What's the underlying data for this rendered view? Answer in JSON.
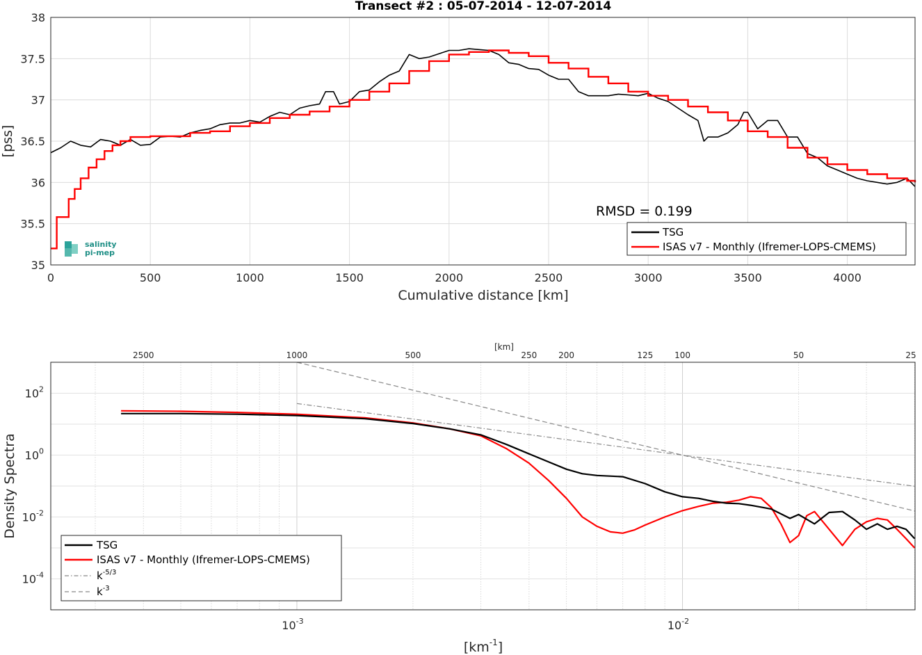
{
  "chart_data": [
    {
      "type": "line",
      "title": "Transect #2 : 05-07-2014 - 12-07-2014",
      "xlabel": "Cumulative distance [km]",
      "ylabel": "[pss]",
      "xlim": [
        0,
        4340
      ],
      "ylim": [
        35,
        38
      ],
      "xticks": [
        "0",
        "500",
        "1000",
        "1500",
        "2000",
        "2500",
        "3000",
        "3500",
        "4000"
      ],
      "yticks": [
        "35",
        "35.5",
        "36",
        "36.5",
        "37",
        "37.5",
        "38"
      ],
      "grid": true,
      "legend_position": "bottom-right",
      "annotation": "RMSD = 0.199",
      "logo": {
        "line1": "salinity",
        "line2": "pi-mep"
      },
      "series": [
        {
          "name": "TSG",
          "color": "#000000",
          "x": [
            0,
            50,
            100,
            150,
            200,
            250,
            300,
            350,
            400,
            450,
            500,
            550,
            600,
            650,
            700,
            750,
            800,
            850,
            900,
            950,
            1000,
            1050,
            1100,
            1150,
            1200,
            1250,
            1300,
            1350,
            1380,
            1420,
            1450,
            1500,
            1550,
            1600,
            1650,
            1700,
            1750,
            1800,
            1850,
            1900,
            1950,
            2000,
            2050,
            2100,
            2150,
            2200,
            2250,
            2300,
            2350,
            2400,
            2450,
            2500,
            2550,
            2600,
            2650,
            2700,
            2750,
            2800,
            2850,
            2900,
            2950,
            3000,
            3050,
            3100,
            3150,
            3200,
            3250,
            3280,
            3300,
            3350,
            3400,
            3450,
            3480,
            3500,
            3550,
            3600,
            3650,
            3700,
            3750,
            3800,
            3850,
            3900,
            3950,
            4000,
            4050,
            4100,
            4150,
            4200,
            4250,
            4300,
            4340
          ],
          "y": [
            36.36,
            36.42,
            36.5,
            36.45,
            36.43,
            36.52,
            36.5,
            36.45,
            36.52,
            36.45,
            36.46,
            36.55,
            36.56,
            36.55,
            36.6,
            36.63,
            36.65,
            36.7,
            36.72,
            36.72,
            36.75,
            36.73,
            36.8,
            36.85,
            36.82,
            36.9,
            36.93,
            36.95,
            37.1,
            37.1,
            36.95,
            36.98,
            37.1,
            37.12,
            37.22,
            37.3,
            37.35,
            37.55,
            37.5,
            37.52,
            37.56,
            37.6,
            37.6,
            37.62,
            37.61,
            37.6,
            37.55,
            37.45,
            37.43,
            37.38,
            37.37,
            37.3,
            37.25,
            37.25,
            37.1,
            37.05,
            37.05,
            37.05,
            37.07,
            37.06,
            37.05,
            37.08,
            37.02,
            36.98,
            36.9,
            36.82,
            36.75,
            36.5,
            36.55,
            36.55,
            36.6,
            36.7,
            36.85,
            36.85,
            36.65,
            36.75,
            36.75,
            36.55,
            36.55,
            36.35,
            36.3,
            36.2,
            36.15,
            36.1,
            36.05,
            36.02,
            36.0,
            35.98,
            36.0,
            36.05,
            35.95
          ]
        },
        {
          "name": "ISAS v7 - Monthly (Ifremer-LOPS-CMEMS)",
          "color": "#ff0000",
          "x": [
            0,
            30,
            60,
            90,
            120,
            150,
            190,
            230,
            270,
            310,
            350,
            400,
            450,
            500,
            600,
            700,
            800,
            900,
            1000,
            1100,
            1200,
            1300,
            1400,
            1500,
            1600,
            1700,
            1800,
            1900,
            2000,
            2100,
            2200,
            2300,
            2400,
            2500,
            2600,
            2700,
            2800,
            2900,
            3000,
            3100,
            3200,
            3300,
            3400,
            3500,
            3600,
            3700,
            3800,
            3900,
            4000,
            4100,
            4200,
            4300,
            4340
          ],
          "y": [
            35.2,
            35.58,
            35.58,
            35.8,
            35.92,
            36.05,
            36.18,
            36.28,
            36.38,
            36.45,
            36.5,
            36.55,
            36.55,
            36.56,
            36.56,
            36.6,
            36.62,
            36.68,
            36.72,
            36.78,
            36.82,
            36.86,
            36.92,
            37.0,
            37.1,
            37.2,
            37.35,
            37.47,
            37.55,
            37.58,
            37.6,
            37.57,
            37.53,
            37.45,
            37.38,
            37.28,
            37.2,
            37.1,
            37.05,
            37.0,
            36.92,
            36.85,
            36.75,
            36.62,
            36.55,
            36.42,
            36.3,
            36.22,
            36.15,
            36.1,
            36.05,
            36.02,
            36.0
          ]
        }
      ]
    },
    {
      "type": "line",
      "title": "",
      "xlabel": "[km",
      "xlabel_sup": "-1",
      "xlabel_end": "]",
      "ylabel": "Density Spectra",
      "top_axis_label": "[km]",
      "xscale": "log",
      "yscale": "log",
      "xlim": [
        0.00023,
        0.0401
      ],
      "ylim": [
        1e-05,
        1000
      ],
      "xticks": [
        {
          "base": "10",
          "exp": "-3"
        },
        {
          "base": "10",
          "exp": "-2"
        }
      ],
      "yticks": [
        {
          "base": "10",
          "exp": "2"
        },
        {
          "base": "10",
          "exp": "0"
        },
        {
          "base": "10",
          "exp": "-2"
        },
        {
          "base": "10",
          "exp": "-4"
        }
      ],
      "top_ticks": [
        "2500",
        "1000",
        "500",
        "250",
        "200",
        "125",
        "100",
        "50",
        "25"
      ],
      "grid": true,
      "legend_position": "bottom-left",
      "series": [
        {
          "name": "TSG",
          "color": "#000000",
          "x": [
            0.00035,
            0.0005,
            0.0007,
            0.001,
            0.0015,
            0.002,
            0.0025,
            0.003,
            0.0035,
            0.004,
            0.0045,
            0.005,
            0.0055,
            0.006,
            0.007,
            0.008,
            0.009,
            0.01,
            0.011,
            0.012,
            0.013,
            0.014,
            0.015,
            0.017,
            0.019,
            0.02,
            0.022,
            0.024,
            0.026,
            0.028,
            0.03,
            0.032,
            0.034,
            0.036,
            0.038,
            0.04
          ],
          "y": [
            22,
            22,
            21,
            19,
            15,
            10.5,
            7,
            4.5,
            2.2,
            1.1,
            0.6,
            0.35,
            0.25,
            0.22,
            0.2,
            0.12,
            0.065,
            0.045,
            0.04,
            0.032,
            0.028,
            0.027,
            0.024,
            0.018,
            0.009,
            0.012,
            0.006,
            0.014,
            0.015,
            0.008,
            0.004,
            0.006,
            0.004,
            0.005,
            0.004,
            0.002
          ]
        },
        {
          "name": "ISAS v7 - Monthly (Ifremer-LOPS-CMEMS)",
          "color": "#ff0000",
          "x": [
            0.00035,
            0.0005,
            0.0007,
            0.001,
            0.0015,
            0.002,
            0.0025,
            0.003,
            0.0035,
            0.004,
            0.0045,
            0.005,
            0.0055,
            0.006,
            0.0065,
            0.007,
            0.0075,
            0.008,
            0.009,
            0.01,
            0.011,
            0.012,
            0.013,
            0.014,
            0.015,
            0.016,
            0.017,
            0.018,
            0.019,
            0.02,
            0.021,
            0.022,
            0.024,
            0.026,
            0.028,
            0.03,
            0.032,
            0.034,
            0.036,
            0.038,
            0.04
          ],
          "y": [
            27,
            26,
            24,
            21,
            16,
            11,
            7,
            4.2,
            1.6,
            0.55,
            0.15,
            0.04,
            0.01,
            0.005,
            0.0033,
            0.003,
            0.0038,
            0.0055,
            0.01,
            0.016,
            0.022,
            0.028,
            0.03,
            0.035,
            0.045,
            0.04,
            0.02,
            0.006,
            0.0015,
            0.0025,
            0.011,
            0.015,
            0.004,
            0.0012,
            0.004,
            0.007,
            0.009,
            0.008,
            0.004,
            0.002,
            0.001
          ]
        },
        {
          "name": "k",
          "name_sup": "-5/3",
          "color": "#888888",
          "dash": "dashdot",
          "x": [
            0.001,
            0.0401
          ],
          "y": [
            46.4,
            0.098
          ]
        },
        {
          "name": "k",
          "name_sup": "-3",
          "color": "#888888",
          "dash": "dashed",
          "x": [
            0.001,
            0.0401
          ],
          "y": [
            1000,
            0.0155
          ]
        }
      ]
    }
  ]
}
